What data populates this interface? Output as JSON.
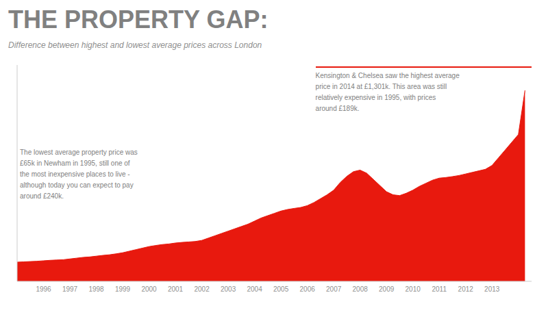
{
  "chart_data": {
    "type": "area",
    "title": "THE PROPERTY GAP:",
    "subtitle": "Difference between highest and lowest average prices across London",
    "annotations": [
      "The lowest average property price was\n£65k in Newham in 1995, still one of\nthe most inexpensive places to live -\nalthough today you can expect to pay\naround £240k.",
      "Kensington & Chelsea saw the highest average\nprice in 2014 at £1,301k. This area was still\nrelatively expensive in 1995, with prices\naround £189k."
    ],
    "x": [
      1995.0,
      1995.25,
      1995.5,
      1995.75,
      1996.0,
      1996.25,
      1996.5,
      1996.75,
      1997.0,
      1997.25,
      1997.5,
      1997.75,
      1998.0,
      1998.25,
      1998.5,
      1998.75,
      1999.0,
      1999.25,
      1999.5,
      1999.75,
      2000.0,
      2000.25,
      2000.5,
      2000.75,
      2001.0,
      2001.25,
      2001.5,
      2001.75,
      2002.0,
      2002.25,
      2002.5,
      2002.75,
      2003.0,
      2003.25,
      2003.5,
      2003.75,
      2004.0,
      2004.25,
      2004.5,
      2004.75,
      2005.0,
      2005.25,
      2005.5,
      2005.75,
      2006.0,
      2006.25,
      2006.5,
      2006.75,
      2007.0,
      2007.25,
      2007.5,
      2007.75,
      2008.0,
      2008.25,
      2008.5,
      2008.75,
      2009.0,
      2009.25,
      2009.5,
      2009.75,
      2010.0,
      2010.25,
      2010.5,
      2010.75,
      2011.0,
      2011.25,
      2011.5,
      2011.75,
      2012.0,
      2012.25,
      2012.5,
      2012.75,
      2013.0,
      2013.25,
      2013.5,
      2013.75,
      2014.0,
      2014.25
    ],
    "values": [
      124000,
      126000,
      128000,
      130000,
      133000,
      136000,
      138000,
      140000,
      145000,
      150000,
      155000,
      158000,
      163000,
      168000,
      172000,
      178000,
      185000,
      195000,
      205000,
      215000,
      225000,
      232000,
      238000,
      242000,
      248000,
      252000,
      255000,
      258000,
      265000,
      280000,
      295000,
      310000,
      325000,
      340000,
      355000,
      370000,
      390000,
      410000,
      425000,
      440000,
      455000,
      465000,
      472000,
      478000,
      490000,
      510000,
      535000,
      560000,
      590000,
      640000,
      680000,
      710000,
      720000,
      700000,
      660000,
      620000,
      580000,
      560000,
      555000,
      570000,
      590000,
      615000,
      635000,
      655000,
      668000,
      672000,
      678000,
      685000,
      695000,
      705000,
      715000,
      725000,
      750000,
      800000,
      850000,
      900000,
      950000,
      1236000
    ],
    "color": "#e8190e",
    "xlim": [
      1995.0,
      2014.5
    ],
    "xticks": [
      1996,
      1997,
      1998,
      1999,
      2000,
      2001,
      2002,
      2003,
      2004,
      2005,
      2006,
      2007,
      2008,
      2009,
      2010,
      2011,
      2012,
      2013
    ],
    "ylim": [
      0,
      1400000
    ],
    "tick_labels": "x",
    "grid": false
  }
}
